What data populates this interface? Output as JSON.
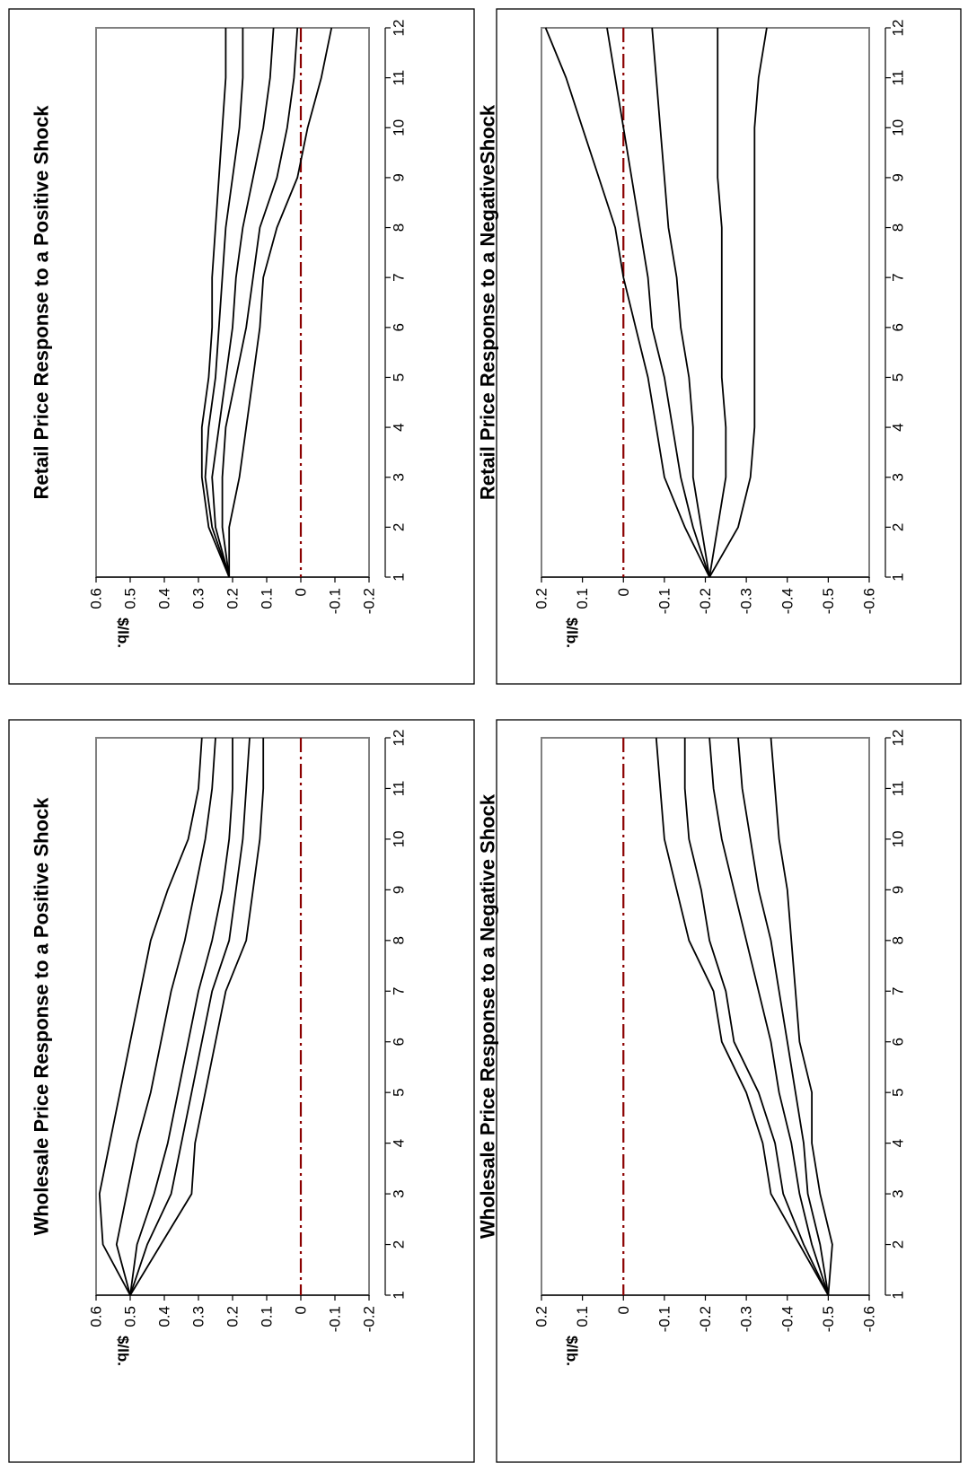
{
  "chart_data": [
    {
      "type": "line",
      "title": "Wholesale Price Response to a Positive Shock",
      "ylabel": "$/lb.",
      "xlabel": "",
      "x": [
        1,
        2,
        3,
        4,
        5,
        6,
        7,
        8,
        9,
        10,
        11,
        12
      ],
      "ylim": [
        -0.2,
        0.6
      ],
      "yticks": [
        0.6,
        0.5,
        0.4,
        0.3,
        0.2,
        0.1,
        0,
        -0.1,
        -0.2
      ],
      "ytick_labels": [
        "0.6",
        "0.5",
        "0.4",
        "0.3",
        "0.2",
        "0.1",
        "0",
        "-0.1",
        "-0.2"
      ],
      "xtick_labels": [
        "1",
        "2",
        "3",
        "4",
        "5",
        "6",
        "7",
        "8",
        "9",
        "10",
        "11",
        "12"
      ],
      "reference_line": 0,
      "series": [
        {
          "values": [
            0.5,
            0.58,
            0.59,
            0.56,
            0.53,
            0.5,
            0.47,
            0.44,
            0.39,
            0.33,
            0.3,
            0.29
          ]
        },
        {
          "values": [
            0.5,
            0.54,
            0.51,
            0.48,
            0.44,
            0.41,
            0.38,
            0.34,
            0.31,
            0.28,
            0.26,
            0.25
          ]
        },
        {
          "values": [
            0.5,
            0.48,
            0.43,
            0.39,
            0.36,
            0.33,
            0.3,
            0.26,
            0.23,
            0.21,
            0.2,
            0.2
          ]
        },
        {
          "values": [
            0.5,
            0.45,
            0.38,
            0.35,
            0.32,
            0.29,
            0.26,
            0.21,
            0.19,
            0.17,
            0.16,
            0.15
          ]
        },
        {
          "values": [
            0.5,
            0.41,
            0.32,
            0.31,
            0.28,
            0.25,
            0.22,
            0.16,
            0.14,
            0.12,
            0.11,
            0.11
          ]
        }
      ]
    },
    {
      "type": "line",
      "title": "Retail Price Response to a Positive Shock",
      "ylabel": "$/lb.",
      "xlabel": "",
      "x": [
        1,
        2,
        3,
        4,
        5,
        6,
        7,
        8,
        9,
        10,
        11,
        12
      ],
      "ylim": [
        -0.2,
        0.6
      ],
      "yticks": [
        0.6,
        0.5,
        0.4,
        0.3,
        0.2,
        0.1,
        0,
        -0.1,
        -0.2
      ],
      "ytick_labels": [
        "0.6",
        "0.5",
        "0.4",
        "0.3",
        "0.2",
        "0.1",
        "0",
        "-0.1",
        "-0.2"
      ],
      "xtick_labels": [
        "1",
        "2",
        "3",
        "4",
        "5",
        "6",
        "7",
        "8",
        "9",
        "10",
        "11",
        "12"
      ],
      "reference_line": 0,
      "series": [
        {
          "values": [
            0.21,
            0.27,
            0.29,
            0.29,
            0.27,
            0.26,
            0.26,
            0.25,
            0.24,
            0.23,
            0.22,
            0.22
          ]
        },
        {
          "values": [
            0.21,
            0.26,
            0.28,
            0.27,
            0.25,
            0.24,
            0.23,
            0.22,
            0.2,
            0.18,
            0.17,
            0.17
          ]
        },
        {
          "values": [
            0.21,
            0.25,
            0.26,
            0.24,
            0.22,
            0.2,
            0.19,
            0.17,
            0.14,
            0.11,
            0.09,
            0.08
          ]
        },
        {
          "values": [
            0.21,
            0.23,
            0.23,
            0.22,
            0.19,
            0.16,
            0.14,
            0.12,
            0.07,
            0.04,
            0.02,
            0.01
          ]
        },
        {
          "values": [
            0.21,
            0.21,
            0.18,
            0.16,
            0.14,
            0.12,
            0.11,
            0.07,
            0.01,
            -0.02,
            -0.06,
            -0.09
          ]
        }
      ]
    },
    {
      "type": "line",
      "title": "Wholesale Price Response to a Negative Shock",
      "ylabel": "$/lb.",
      "xlabel": "",
      "x": [
        1,
        2,
        3,
        4,
        5,
        6,
        7,
        8,
        9,
        10,
        11,
        12
      ],
      "ylim": [
        -0.6,
        0.2
      ],
      "yticks": [
        0.2,
        0.1,
        0,
        -0.1,
        -0.2,
        -0.3,
        -0.4,
        -0.5,
        -0.6
      ],
      "ytick_labels": [
        "0.2",
        "0.1",
        "0",
        "-0.1",
        "-0.2",
        "-0.3",
        "-0.4",
        "-0.5",
        "-0.6"
      ],
      "xtick_labels": [
        "1",
        "2",
        "3",
        "4",
        "5",
        "6",
        "7",
        "8",
        "9",
        "10",
        "11",
        "12"
      ],
      "reference_line": 0,
      "series": [
        {
          "values": [
            -0.5,
            -0.43,
            -0.36,
            -0.34,
            -0.3,
            -0.24,
            -0.22,
            -0.16,
            -0.13,
            -0.1,
            -0.09,
            -0.08
          ]
        },
        {
          "values": [
            -0.5,
            -0.44,
            -0.39,
            -0.37,
            -0.33,
            -0.27,
            -0.25,
            -0.21,
            -0.19,
            -0.16,
            -0.15,
            -0.15
          ]
        },
        {
          "values": [
            -0.5,
            -0.46,
            -0.43,
            -0.41,
            -0.38,
            -0.36,
            -0.33,
            -0.3,
            -0.27,
            -0.24,
            -0.22,
            -0.21
          ]
        },
        {
          "values": [
            -0.5,
            -0.48,
            -0.45,
            -0.44,
            -0.42,
            -0.4,
            -0.38,
            -0.36,
            -0.33,
            -0.31,
            -0.29,
            -0.28
          ]
        },
        {
          "values": [
            -0.5,
            -0.51,
            -0.48,
            -0.46,
            -0.46,
            -0.43,
            -0.42,
            -0.41,
            -0.4,
            -0.38,
            -0.37,
            -0.36
          ]
        }
      ]
    },
    {
      "type": "line",
      "title": "Retail Price Response to a NegativeShock",
      "ylabel": "$/lb.",
      "xlabel": "",
      "x": [
        1,
        2,
        3,
        4,
        5,
        6,
        7,
        8,
        9,
        10,
        11,
        12
      ],
      "ylim": [
        -0.6,
        0.2
      ],
      "yticks": [
        0.2,
        0.1,
        0,
        -0.1,
        -0.2,
        -0.3,
        -0.4,
        -0.5,
        -0.6
      ],
      "ytick_labels": [
        "0.2",
        "0.1",
        "0",
        "-0.1",
        "-0.2",
        "-0.3",
        "-0.4",
        "-0.5",
        "-0.6"
      ],
      "xtick_labels": [
        "1",
        "2",
        "3",
        "4",
        "5",
        "6",
        "7",
        "8",
        "9",
        "10",
        "11",
        "12"
      ],
      "reference_line": 0,
      "series": [
        {
          "values": [
            -0.21,
            -0.15,
            -0.1,
            -0.08,
            -0.06,
            -0.03,
            0.0,
            0.02,
            0.06,
            0.1,
            0.14,
            0.19
          ]
        },
        {
          "values": [
            -0.21,
            -0.17,
            -0.14,
            -0.12,
            -0.1,
            -0.07,
            -0.06,
            -0.04,
            -0.02,
            0.0,
            0.02,
            0.04
          ]
        },
        {
          "values": [
            -0.21,
            -0.19,
            -0.17,
            -0.17,
            -0.16,
            -0.14,
            -0.13,
            -0.11,
            -0.1,
            -0.09,
            -0.08,
            -0.07
          ]
        },
        {
          "values": [
            -0.21,
            -0.23,
            -0.25,
            -0.25,
            -0.24,
            -0.24,
            -0.24,
            -0.24,
            -0.23,
            -0.23,
            -0.23,
            -0.23
          ]
        },
        {
          "values": [
            -0.21,
            -0.28,
            -0.31,
            -0.32,
            -0.32,
            -0.32,
            -0.32,
            -0.32,
            -0.32,
            -0.32,
            -0.33,
            -0.35
          ]
        }
      ]
    }
  ]
}
